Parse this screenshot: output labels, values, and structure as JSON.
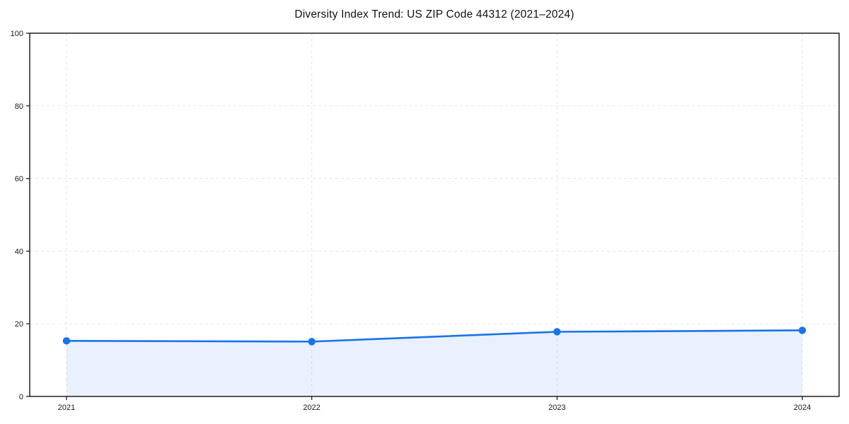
{
  "page": {
    "background_color": "#ffffff"
  },
  "chart_data": {
    "type": "line",
    "title": "Diversity Index Trend: US ZIP Code 44312 (2021–2024)",
    "xlabel": "",
    "ylabel": "",
    "x": [
      2021,
      2022,
      2023,
      2024
    ],
    "series": [
      {
        "name": "Diversity Index",
        "values": [
          15.3,
          15.1,
          17.8,
          18.2
        ]
      }
    ],
    "xlim": [
      2020.85,
      2024.15
    ],
    "ylim": [
      0,
      100
    ],
    "xticks": [
      2021,
      2022,
      2023,
      2024
    ],
    "xtick_labels": [
      "2021",
      "2022",
      "2023",
      "2024"
    ],
    "yticks": [
      0,
      20,
      40,
      60,
      80,
      100
    ],
    "ytick_labels": [
      "0",
      "20",
      "40",
      "60",
      "80",
      "100"
    ],
    "grid": {
      "show": true,
      "style": "dashed",
      "color": "#e5e5e5"
    },
    "legend": {
      "show": false,
      "position": "none"
    },
    "area_fill": true,
    "line_color": "#1a73e8",
    "line_width": 2.6,
    "fill_color": "#1a73e8",
    "fill_opacity": 0.1,
    "marker": {
      "shape": "circle",
      "radius": 5.2,
      "color": "#1a73e8"
    },
    "spine_color": "#111111",
    "tick_color": "#111111",
    "tick_label_color": "#1a1a1a",
    "tick_font_size": 11,
    "title_font_size": 15.5
  }
}
